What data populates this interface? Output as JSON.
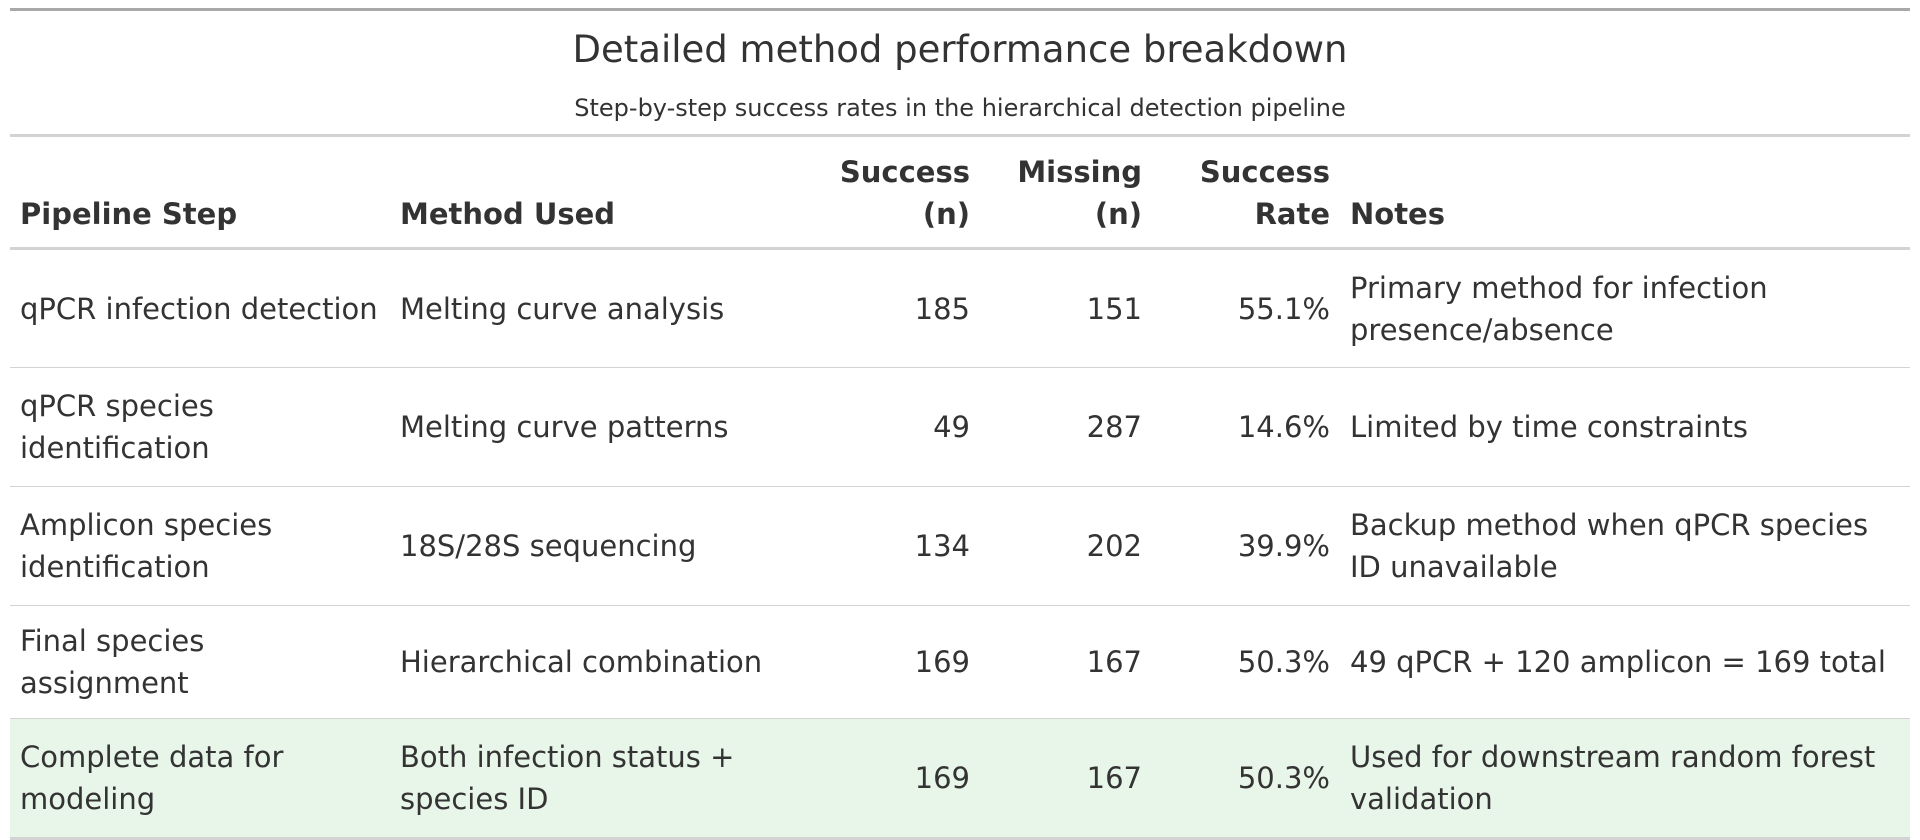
{
  "title": "Detailed method performance breakdown",
  "subtitle": "Step-by-step success rates in the hierarchical detection pipeline",
  "columns": {
    "pipeline_step": "Pipeline Step",
    "method_used": "Method Used",
    "success_line1": "Success",
    "success_line2": "(n)",
    "missing_line1": "Missing",
    "missing_line2": "(n)",
    "rate_line1": "Success",
    "rate_line2": "Rate",
    "notes": "Notes"
  },
  "rows": [
    {
      "step": "qPCR infection detection",
      "method": "Melting curve analysis",
      "success": "185",
      "missing": "151",
      "rate": "55.1%",
      "notes": "Primary method for infection presence/absence"
    },
    {
      "step": "qPCR species identification",
      "method": "Melting curve patterns",
      "success": "49",
      "missing": "287",
      "rate": "14.6%",
      "notes": "Limited by time constraints"
    },
    {
      "step": "Amplicon species identification",
      "method": "18S/28S sequencing",
      "success": "134",
      "missing": "202",
      "rate": "39.9%",
      "notes": "Backup method when qPCR species ID unavailable"
    },
    {
      "step": "Final species assignment",
      "method": "Hierarchical combination",
      "success": "169",
      "missing": "167",
      "rate": "50.3%",
      "notes": "49 qPCR + 120 amplicon = 169 total"
    },
    {
      "step": "Complete data for modeling",
      "method": "Both infection status + species ID",
      "success": "169",
      "missing": "167",
      "rate": "50.3%",
      "notes": "Used for downstream random forest validation"
    }
  ],
  "colors": {
    "highlight_row": "#e8f5e9",
    "rule": "#d3d3d3",
    "top_rule": "#a8a8a8",
    "text": "#333333"
  }
}
